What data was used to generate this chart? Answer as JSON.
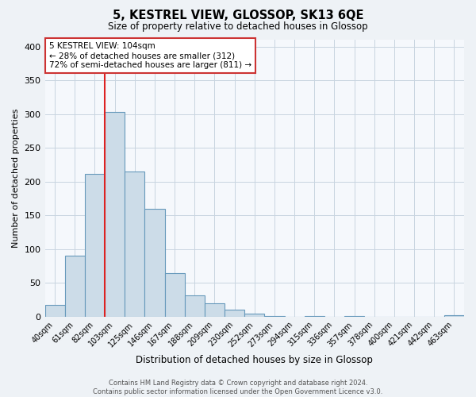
{
  "title": "5, KESTREL VIEW, GLOSSOP, SK13 6QE",
  "subtitle": "Size of property relative to detached houses in Glossop",
  "xlabel": "Distribution of detached houses by size in Glossop",
  "ylabel": "Number of detached properties",
  "bin_labels": [
    "40sqm",
    "61sqm",
    "82sqm",
    "103sqm",
    "125sqm",
    "146sqm",
    "167sqm",
    "188sqm",
    "209sqm",
    "230sqm",
    "252sqm",
    "273sqm",
    "294sqm",
    "315sqm",
    "336sqm",
    "357sqm",
    "378sqm",
    "400sqm",
    "421sqm",
    "442sqm",
    "463sqm"
  ],
  "bar_heights": [
    17,
    90,
    211,
    303,
    215,
    160,
    64,
    31,
    20,
    10,
    4,
    1,
    0,
    1,
    0,
    1,
    0,
    0,
    0,
    0,
    2
  ],
  "bar_color": "#ccdce8",
  "bar_edge_color": "#6699bb",
  "vline_index": 3,
  "vline_color": "#dd2222",
  "ylim": [
    0,
    410
  ],
  "yticks": [
    0,
    50,
    100,
    150,
    200,
    250,
    300,
    350,
    400
  ],
  "annotation_title": "5 KESTREL VIEW: 104sqm",
  "annotation_line1": "← 28% of detached houses are smaller (312)",
  "annotation_line2": "72% of semi-detached houses are larger (811) →",
  "annotation_box_edge": "#cc3333",
  "footer_line1": "Contains HM Land Registry data © Crown copyright and database right 2024.",
  "footer_line2": "Contains public sector information licensed under the Open Government Licence v3.0.",
  "background_color": "#eef2f6",
  "plot_bg_color": "#f5f8fc",
  "grid_color": "#c8d4e0"
}
